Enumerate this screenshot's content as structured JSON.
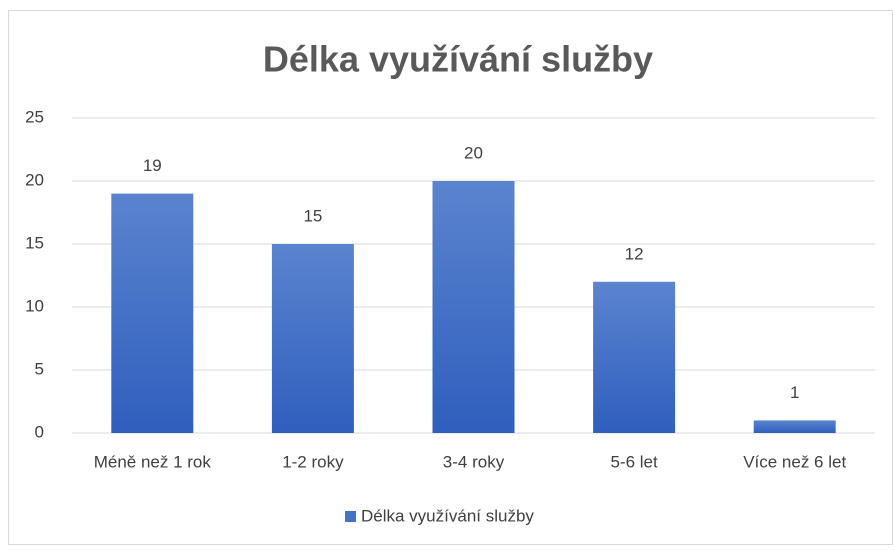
{
  "chart_data": {
    "type": "bar",
    "title": "Délka využívání služby",
    "categories": [
      "Méně než 1 rok",
      "1-2 roky",
      "3-4 roky",
      "5-6 let",
      "Více než 6 let"
    ],
    "series": [
      {
        "name": "Délka využívání služby",
        "color": "#4472c4",
        "values": [
          19,
          15,
          20,
          12,
          1
        ]
      }
    ],
    "ylim": [
      0,
      25
    ],
    "yticks": [
      0,
      5,
      10,
      15,
      20,
      25
    ],
    "grid": true,
    "legend": "bottom",
    "data_labels": true
  }
}
